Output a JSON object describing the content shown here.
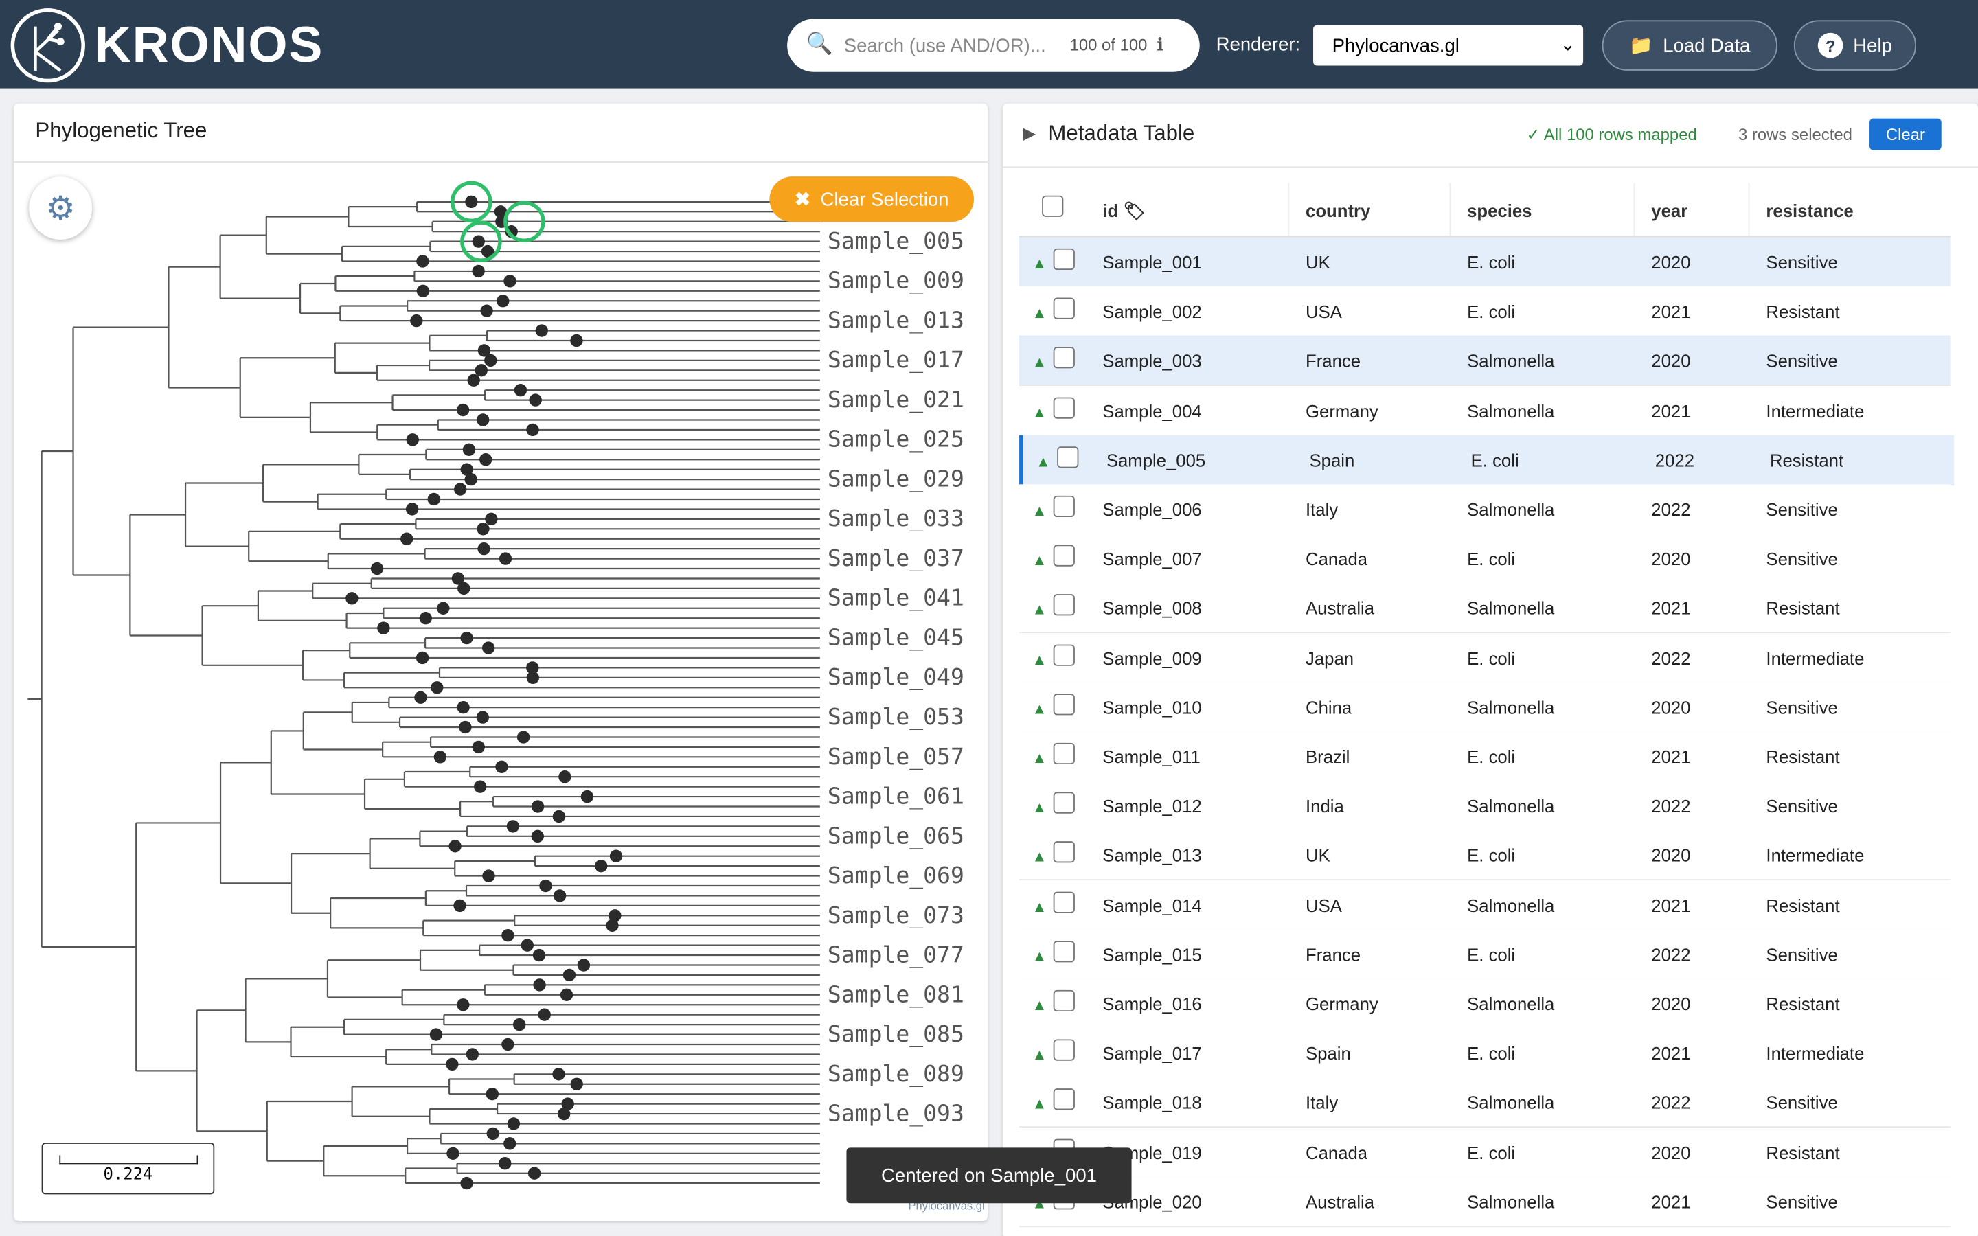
{
  "header": {
    "brand": "KRONOS",
    "search_placeholder": "Search (use AND/OR)...",
    "search_count": "100 of 100",
    "renderer_label": "Renderer:",
    "renderer_value": "Phylocanvas.gl",
    "load_button": "Load Data",
    "help_button": "Help"
  },
  "tree_panel": {
    "title": "Phylogenetic Tree",
    "clear_button": "Clear Selection",
    "scale_label": "0.224",
    "watermark": "Phylocanvas.gl",
    "tip_labels": [
      "Sample_005",
      "Sample_009",
      "Sample_013",
      "Sample_017",
      "Sample_021",
      "Sample_025",
      "Sample_029",
      "Sample_033",
      "Sample_037",
      "Sample_041",
      "Sample_045",
      "Sample_049",
      "Sample_053",
      "Sample_057",
      "Sample_061",
      "Sample_065",
      "Sample_069",
      "Sample_073",
      "Sample_077",
      "Sample_081",
      "Sample_085",
      "Sample_089",
      "Sample_093"
    ]
  },
  "table": {
    "title": "Metadata Table",
    "mapped_status": "✓ All 100 rows mapped",
    "selected_count": "3 rows selected",
    "clear_button": "Clear",
    "columns": [
      "id",
      "country",
      "species",
      "year",
      "resistance"
    ],
    "rows": [
      [
        "Sample_001",
        "UK",
        "E. coli",
        "2020",
        "Sensitive"
      ],
      [
        "Sample_002",
        "USA",
        "E. coli",
        "2021",
        "Resistant"
      ],
      [
        "Sample_003",
        "France",
        "Salmonella",
        "2020",
        "Sensitive"
      ],
      [
        "Sample_004",
        "Germany",
        "Salmonella",
        "2021",
        "Intermediate"
      ],
      [
        "Sample_005",
        "Spain",
        "E. coli",
        "2022",
        "Resistant"
      ],
      [
        "Sample_006",
        "Italy",
        "Salmonella",
        "2022",
        "Sensitive"
      ],
      [
        "Sample_007",
        "Canada",
        "E. coli",
        "2020",
        "Sensitive"
      ],
      [
        "Sample_008",
        "Australia",
        "Salmonella",
        "2021",
        "Resistant"
      ],
      [
        "Sample_009",
        "Japan",
        "E. coli",
        "2022",
        "Intermediate"
      ],
      [
        "Sample_010",
        "China",
        "Salmonella",
        "2020",
        "Sensitive"
      ],
      [
        "Sample_011",
        "Brazil",
        "E. coli",
        "2021",
        "Resistant"
      ],
      [
        "Sample_012",
        "India",
        "Salmonella",
        "2022",
        "Sensitive"
      ],
      [
        "Sample_013",
        "UK",
        "E. coli",
        "2020",
        "Intermediate"
      ],
      [
        "Sample_014",
        "USA",
        "Salmonella",
        "2021",
        "Resistant"
      ],
      [
        "Sample_015",
        "France",
        "E. coli",
        "2022",
        "Sensitive"
      ],
      [
        "Sample_016",
        "Germany",
        "Salmonella",
        "2020",
        "Resistant"
      ],
      [
        "Sample_017",
        "Spain",
        "E. coli",
        "2021",
        "Intermediate"
      ],
      [
        "Sample_018",
        "Italy",
        "Salmonella",
        "2022",
        "Sensitive"
      ],
      [
        "Sample_019",
        "Canada",
        "E. coli",
        "2020",
        "Resistant"
      ],
      [
        "Sample_020",
        "Australia",
        "Salmonella",
        "2021",
        "Sensitive"
      ]
    ]
  },
  "toast": "Centered on Sample_001"
}
